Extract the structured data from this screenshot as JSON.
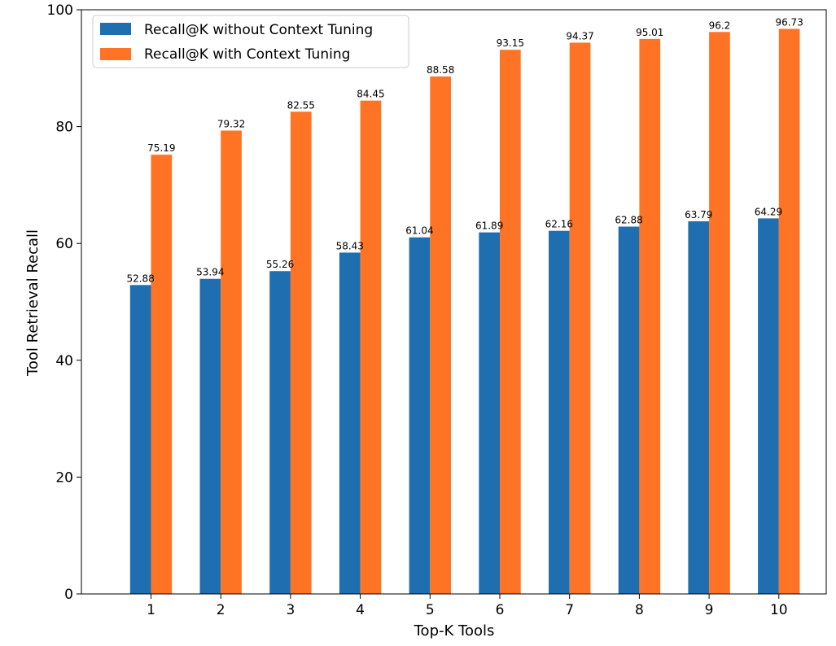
{
  "chart_data": {
    "type": "bar",
    "categories": [
      "1",
      "2",
      "3",
      "4",
      "5",
      "6",
      "7",
      "8",
      "9",
      "10"
    ],
    "series": [
      {
        "name": "Recall@K without Context Tuning",
        "color": "#1f6fb0",
        "values": [
          52.88,
          53.94,
          55.26,
          58.43,
          61.04,
          61.89,
          62.16,
          62.88,
          63.79,
          64.29
        ],
        "labels": [
          "52.88",
          "53.94",
          "55.26",
          "58.43",
          "61.04",
          "61.89",
          "62.16",
          "62.88",
          "63.79",
          "64.29"
        ]
      },
      {
        "name": "Recall@K with Context Tuning",
        "color": "#ff7424",
        "values": [
          75.19,
          79.32,
          82.55,
          84.45,
          88.58,
          93.15,
          94.37,
          95.01,
          96.2,
          96.73
        ],
        "labels": [
          "75.19",
          "79.32",
          "82.55",
          "84.45",
          "88.58",
          "93.15",
          "94.37",
          "95.01",
          "96.2",
          "96.73"
        ]
      }
    ],
    "xlabel": "Top-K Tools",
    "ylabel": "Tool Retrieval Recall",
    "ylim": [
      0,
      100
    ],
    "yticks": [
      "0",
      "20",
      "40",
      "60",
      "80",
      "100"
    ],
    "grid": false,
    "legend_position": "top-left"
  }
}
